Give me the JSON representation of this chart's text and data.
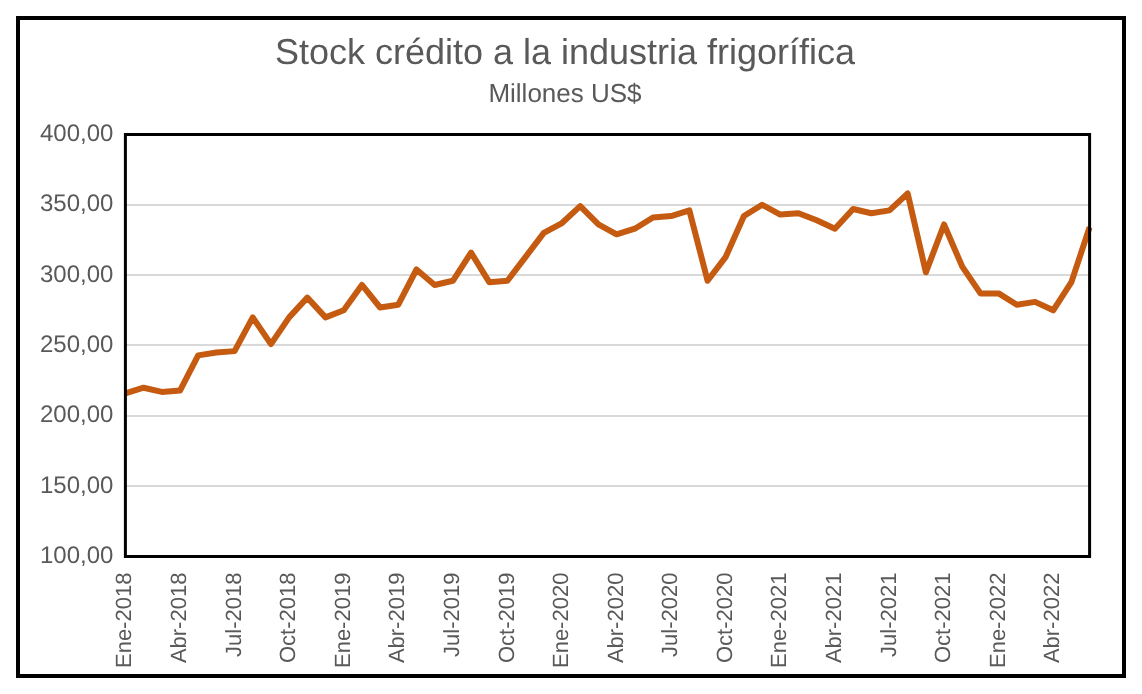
{
  "chart_data": {
    "type": "line",
    "title": "Stock crédito a la industria frigorífica",
    "subtitle": "Millones US$",
    "categories": [
      "Ene-2018",
      null,
      null,
      "Abr-2018",
      null,
      null,
      "Jul-2018",
      null,
      null,
      "Oct-2018",
      null,
      null,
      "Ene-2019",
      null,
      null,
      "Abr-2019",
      null,
      null,
      "Jul-2019",
      null,
      null,
      "Oct-2019",
      null,
      null,
      "Ene-2020",
      null,
      null,
      "Abr-2020",
      null,
      null,
      "Jul-2020",
      null,
      null,
      "Oct-2020",
      null,
      null,
      "Ene-2021",
      null,
      null,
      "Abr-2021",
      null,
      null,
      "Jul-2021",
      null,
      null,
      "Oct-2021",
      null,
      null,
      "Ene-2022",
      null,
      null,
      "Abr-2022",
      null,
      null
    ],
    "series": [
      {
        "color": "#c55a11",
        "values": [
          216,
          220,
          217,
          218,
          243,
          245,
          246,
          270,
          251,
          270,
          284,
          270,
          275,
          293,
          277,
          279,
          304,
          293,
          296,
          316,
          295,
          296,
          313,
          330,
          337,
          349,
          336,
          329,
          333,
          341,
          342,
          346,
          296,
          313,
          342,
          350,
          343,
          344,
          339,
          333,
          347,
          344,
          346,
          358,
          302,
          336,
          306,
          287,
          287,
          279,
          281,
          275,
          295,
          334
        ]
      }
    ],
    "ylim": [
      100,
      400
    ],
    "yticks": [
      {
        "value": 100,
        "label": "100,00"
      },
      {
        "value": 150,
        "label": "150,00"
      },
      {
        "value": 200,
        "label": "200,00"
      },
      {
        "value": 250,
        "label": "250,00"
      },
      {
        "value": 300,
        "label": "300,00"
      },
      {
        "value": 350,
        "label": "350,00"
      },
      {
        "value": 400,
        "label": "400,00"
      }
    ],
    "grid": "y",
    "legend": false,
    "marker": "none",
    "line_style": "solid"
  }
}
